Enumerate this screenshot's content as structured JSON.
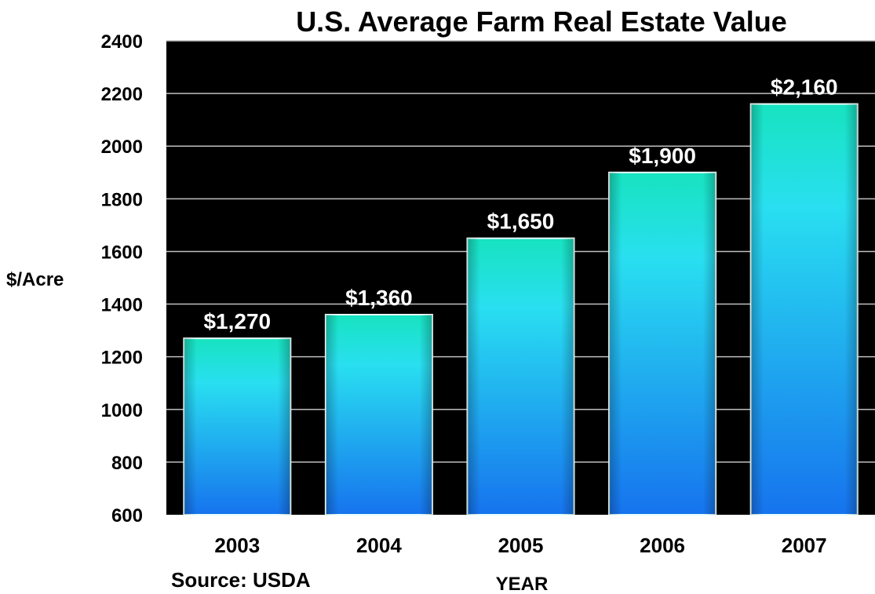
{
  "chart_data": {
    "type": "bar",
    "title": "U.S. Average Farm Real Estate Value",
    "xlabel": "YEAR",
    "ylabel": "$/Acre",
    "categories": [
      "2003",
      "2004",
      "2005",
      "2006",
      "2007"
    ],
    "values": [
      1270,
      1360,
      1650,
      1900,
      2160
    ],
    "data_labels": [
      "$1,270",
      "$1,360",
      "$1,650",
      "$1,900",
      "$2,160"
    ],
    "ylim": [
      600,
      2400
    ],
    "yticks": [
      600,
      800,
      1000,
      1200,
      1400,
      1600,
      1800,
      2000,
      2200,
      2400
    ],
    "grid": true,
    "legend": "none",
    "source": "Source: USDA",
    "colors": {
      "plot_background": "#000000",
      "gridline": "#bfbfbf",
      "bar_top": "#17e3c0",
      "bar_mid": "#29dff0",
      "bar_bottom": "#1673ee",
      "label": "#ffffff"
    }
  }
}
